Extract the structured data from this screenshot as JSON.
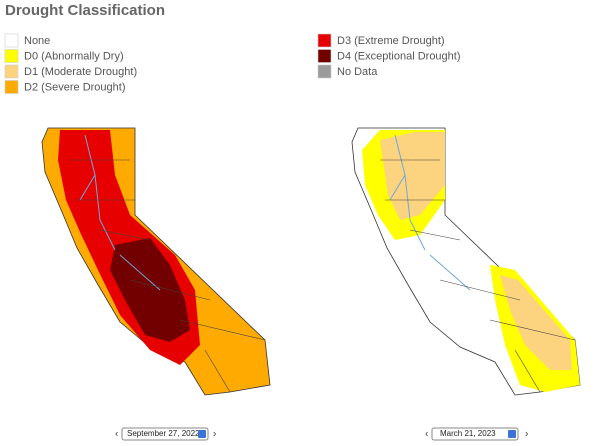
{
  "title": "Drought Classification",
  "legend": [
    {
      "label": "None",
      "color": "#ffffff"
    },
    {
      "label": "D0 (Abnormally Dry)",
      "color": "#ffff00"
    },
    {
      "label": "D1 (Moderate Drought)",
      "color": "#fcd37f"
    },
    {
      "label": "D2 (Severe Drought)",
      "color": "#ffaa00"
    },
    {
      "label": "D3 (Extreme Drought)",
      "color": "#e60000"
    },
    {
      "label": "D4 (Exceptional Drought)",
      "color": "#730000"
    },
    {
      "label": "No Data",
      "color": "#9b9b9b"
    }
  ],
  "maps": [
    {
      "date": "September 27, 2022"
    },
    {
      "date": "March 21, 2023"
    }
  ]
}
